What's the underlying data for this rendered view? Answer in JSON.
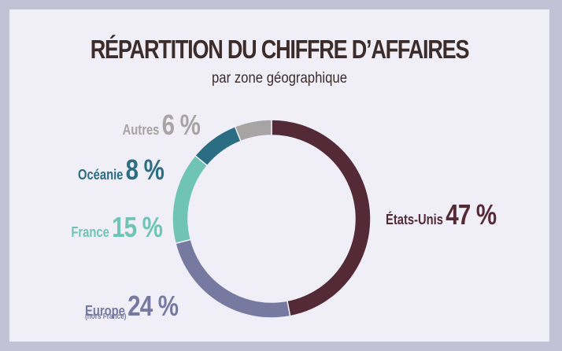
{
  "title": "RÉPARTITION DU CHIFFRE D’AFFAIRES",
  "subtitle": "par zone géographique",
  "colors": {
    "background": "#f0eef6",
    "frame": "#c3c1d6",
    "text": "#3c2c2a"
  },
  "chart_data": {
    "type": "pie",
    "style": "donut",
    "title": "RÉPARTITION DU CHIFFRE D’AFFAIRES",
    "subtitle": "par zone géographique",
    "slices": [
      {
        "label": "États-Unis",
        "value": 47,
        "value_label": "47 %",
        "color": "#532a35"
      },
      {
        "label": "Europe",
        "sublabel": "(hors France)",
        "value": 24,
        "value_label": "24 %",
        "color": "#767aa1"
      },
      {
        "label": "France",
        "value": 15,
        "value_label": "15 %",
        "color": "#6fc4b5"
      },
      {
        "label": "Océanie",
        "value": 8,
        "value_label": "8 %",
        "color": "#2b6d82"
      },
      {
        "label": "Autres",
        "value": 6,
        "value_label": "6 %",
        "color": "#a7a5a3"
      }
    ]
  }
}
